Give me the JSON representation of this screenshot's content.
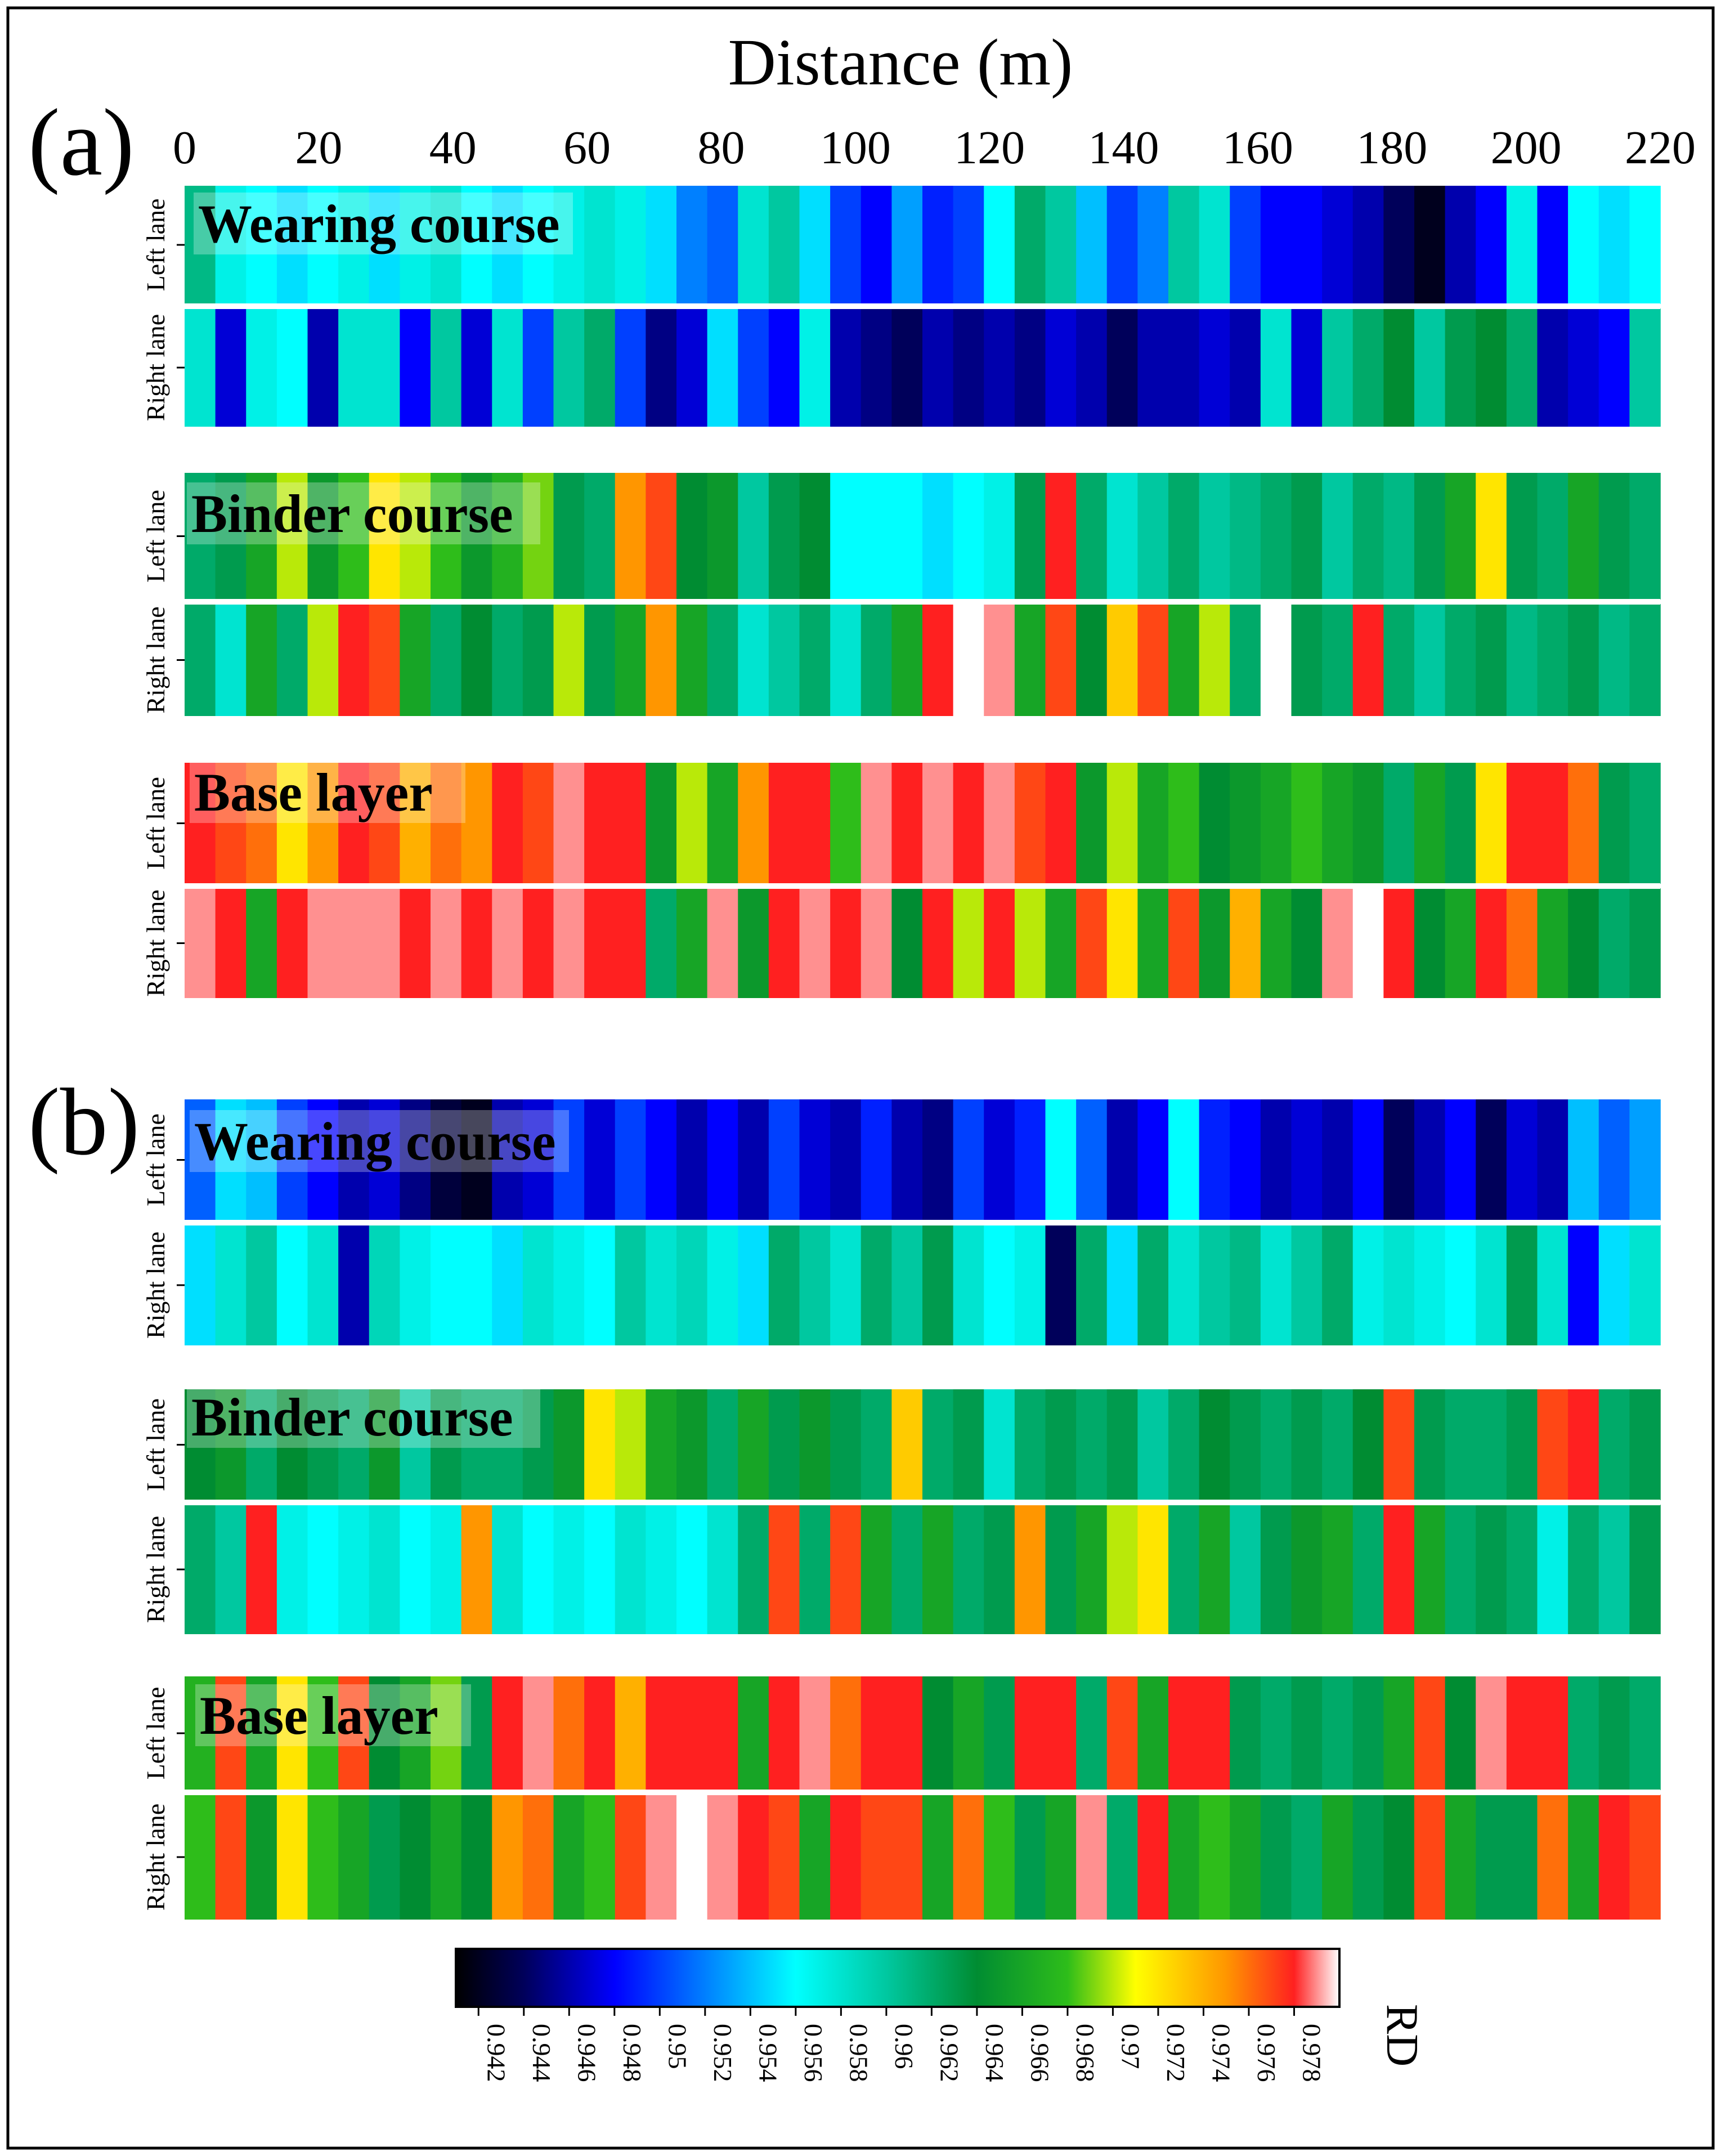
{
  "chart_data": {
    "type": "heatmap",
    "xlabel": "Distance (m)",
    "x_ticks": [
      "0",
      "20",
      "40",
      "60",
      "80",
      "100",
      "120",
      "140",
      "160",
      "180",
      "200",
      "220"
    ],
    "xlim": [
      0,
      220
    ],
    "lane_labels": [
      "Left lane",
      "Right lane"
    ],
    "colorbar": {
      "label": "RD",
      "range": [
        0.941,
        0.98
      ],
      "ticks": [
        "0.942",
        "0.944",
        "0.946",
        "0.948",
        "0.95",
        "0.952",
        "0.954",
        "0.956",
        "0.958",
        "0.96",
        "0.962",
        "0.964",
        "0.966",
        "0.968",
        "0.97",
        "0.972",
        "0.974",
        "0.976",
        "0.978"
      ],
      "stops": [
        {
          "value": 0.941,
          "color": "#000000"
        },
        {
          "value": 0.944,
          "color": "#00005a"
        },
        {
          "value": 0.948,
          "color": "#0000ff"
        },
        {
          "value": 0.956,
          "color": "#00ffff"
        },
        {
          "value": 0.96,
          "color": "#00c8a0"
        },
        {
          "value": 0.964,
          "color": "#008c32"
        },
        {
          "value": 0.968,
          "color": "#2ebd1a"
        },
        {
          "value": 0.971,
          "color": "#ffff00"
        },
        {
          "value": 0.975,
          "color": "#ff9600"
        },
        {
          "value": 0.978,
          "color": "#ff2020"
        },
        {
          "value": 0.98,
          "color": "#ffffff"
        }
      ]
    },
    "panels": [
      {
        "id": "a",
        "label": "(a)",
        "layers": [
          {
            "name": "Wearing course",
            "left_lane": [
              0.961,
              0.957,
              0.956,
              0.955,
              0.956,
              0.957,
              0.955,
              0.957,
              0.958,
              0.956,
              0.955,
              0.956,
              0.957,
              0.958,
              0.957,
              0.955,
              0.952,
              0.951,
              0.958,
              0.96,
              0.955,
              0.95,
              0.948,
              0.953,
              0.949,
              0.95,
              0.956,
              0.962,
              0.96,
              0.954,
              0.95,
              0.952,
              0.96,
              0.958,
              0.95,
              0.948,
              0.948,
              0.947,
              0.946,
              0.944,
              0.942,
              0.946,
              0.948,
              0.957,
              0.948,
              0.956,
              0.955,
              0.956
            ],
            "right_lane": [
              0.958,
              0.947,
              0.957,
              0.956,
              0.946,
              0.958,
              0.958,
              0.948,
              0.96,
              0.947,
              0.958,
              0.95,
              0.96,
              0.962,
              0.95,
              0.945,
              0.947,
              0.955,
              0.95,
              0.948,
              0.957,
              0.946,
              0.945,
              0.944,
              0.946,
              0.945,
              0.946,
              0.945,
              0.947,
              0.946,
              0.944,
              0.946,
              0.946,
              0.947,
              0.946,
              0.958,
              0.947,
              0.96,
              0.962,
              0.964,
              0.96,
              0.963,
              0.964,
              0.962,
              0.946,
              0.947,
              0.948,
              0.96
            ]
          },
          {
            "name": "Binder course",
            "left_lane": [
              0.962,
              0.963,
              0.966,
              0.97,
              0.965,
              0.968,
              0.972,
              0.97,
              0.968,
              0.965,
              0.967,
              0.969,
              0.963,
              0.962,
              0.975,
              0.977,
              0.964,
              0.965,
              0.96,
              0.963,
              0.964,
              0.956,
              0.956,
              0.956,
              0.955,
              0.956,
              0.957,
              0.963,
              0.978,
              0.962,
              0.958,
              0.96,
              0.962,
              0.96,
              0.961,
              0.962,
              0.963,
              0.96,
              0.962,
              0.961,
              0.963,
              0.966,
              0.972,
              0.963,
              0.962,
              0.966,
              0.963,
              0.962
            ],
            "right_lane": [
              0.962,
              0.958,
              0.966,
              0.962,
              0.97,
              0.978,
              0.977,
              0.966,
              0.962,
              0.964,
              0.962,
              0.963,
              0.97,
              0.963,
              0.966,
              0.975,
              0.966,
              0.962,
              0.958,
              0.96,
              0.962,
              0.958,
              0.962,
              0.966,
              0.978,
              0.98,
              0.979,
              0.966,
              0.977,
              0.964,
              0.973,
              0.977,
              0.966,
              0.97,
              0.962,
              0.98,
              0.963,
              0.962,
              0.978,
              0.962,
              0.96,
              0.962,
              0.963,
              0.961,
              0.962,
              0.963,
              0.961,
              0.962
            ]
          },
          {
            "name": "Base layer",
            "left_lane": [
              0.978,
              0.977,
              0.976,
              0.972,
              0.975,
              0.978,
              0.977,
              0.974,
              0.976,
              0.975,
              0.978,
              0.977,
              0.979,
              0.978,
              0.978,
              0.965,
              0.97,
              0.966,
              0.975,
              0.978,
              0.978,
              0.968,
              0.979,
              0.978,
              0.979,
              0.978,
              0.979,
              0.977,
              0.978,
              0.965,
              0.97,
              0.966,
              0.968,
              0.964,
              0.965,
              0.966,
              0.968,
              0.966,
              0.965,
              0.962,
              0.966,
              0.963,
              0.972,
              0.978,
              0.978,
              0.976,
              0.963,
              0.962
            ],
            "right_lane": [
              0.979,
              0.978,
              0.966,
              0.978,
              0.979,
              0.979,
              0.979,
              0.978,
              0.979,
              0.978,
              0.979,
              0.978,
              0.979,
              0.978,
              0.978,
              0.962,
              0.966,
              0.979,
              0.965,
              0.978,
              0.979,
              0.978,
              0.979,
              0.964,
              0.978,
              0.97,
              0.978,
              0.97,
              0.966,
              0.977,
              0.972,
              0.966,
              0.977,
              0.965,
              0.974,
              0.966,
              0.964,
              0.979,
              0.98,
              0.978,
              0.964,
              0.966,
              0.978,
              0.976,
              0.966,
              0.964,
              0.962,
              0.963
            ]
          }
        ]
      },
      {
        "id": "b",
        "label": "(b)",
        "layers": [
          {
            "name": "Wearing course",
            "left_lane": [
              0.951,
              0.955,
              0.954,
              0.95,
              0.948,
              0.946,
              0.947,
              0.945,
              0.943,
              0.942,
              0.946,
              0.947,
              0.95,
              0.947,
              0.95,
              0.948,
              0.946,
              0.948,
              0.946,
              0.95,
              0.947,
              0.946,
              0.949,
              0.946,
              0.945,
              0.95,
              0.947,
              0.949,
              0.956,
              0.951,
              0.946,
              0.948,
              0.956,
              0.949,
              0.948,
              0.946,
              0.947,
              0.946,
              0.948,
              0.944,
              0.946,
              0.948,
              0.944,
              0.947,
              0.946,
              0.954,
              0.951,
              0.953
            ],
            "right_lane": [
              0.955,
              0.958,
              0.96,
              0.956,
              0.958,
              0.946,
              0.959,
              0.957,
              0.956,
              0.956,
              0.955,
              0.958,
              0.957,
              0.956,
              0.96,
              0.958,
              0.959,
              0.957,
              0.955,
              0.962,
              0.96,
              0.958,
              0.962,
              0.96,
              0.963,
              0.958,
              0.956,
              0.957,
              0.944,
              0.962,
              0.955,
              0.962,
              0.958,
              0.96,
              0.961,
              0.958,
              0.96,
              0.962,
              0.957,
              0.958,
              0.957,
              0.956,
              0.958,
              0.963,
              0.958,
              0.948,
              0.955,
              0.958
            ]
          },
          {
            "name": "Binder course",
            "left_lane": [
              0.964,
              0.965,
              0.962,
              0.964,
              0.963,
              0.962,
              0.965,
              0.96,
              0.963,
              0.962,
              0.962,
              0.963,
              0.965,
              0.972,
              0.97,
              0.966,
              0.965,
              0.962,
              0.966,
              0.963,
              0.965,
              0.963,
              0.962,
              0.973,
              0.962,
              0.963,
              0.958,
              0.962,
              0.963,
              0.962,
              0.963,
              0.96,
              0.962,
              0.964,
              0.963,
              0.962,
              0.963,
              0.962,
              0.964,
              0.977,
              0.963,
              0.962,
              0.962,
              0.963,
              0.977,
              0.978,
              0.962,
              0.963
            ],
            "right_lane": [
              0.962,
              0.96,
              0.978,
              0.957,
              0.956,
              0.957,
              0.958,
              0.956,
              0.957,
              0.975,
              0.958,
              0.956,
              0.957,
              0.956,
              0.958,
              0.957,
              0.956,
              0.958,
              0.962,
              0.977,
              0.962,
              0.977,
              0.966,
              0.962,
              0.966,
              0.962,
              0.963,
              0.975,
              0.963,
              0.966,
              0.97,
              0.972,
              0.962,
              0.966,
              0.96,
              0.963,
              0.965,
              0.966,
              0.962,
              0.978,
              0.966,
              0.962,
              0.963,
              0.962,
              0.957,
              0.962,
              0.96,
              0.963
            ]
          },
          {
            "name": "Base layer",
            "left_lane": [
              0.967,
              0.977,
              0.966,
              0.972,
              0.968,
              0.977,
              0.964,
              0.966,
              0.969,
              0.963,
              0.978,
              0.979,
              0.976,
              0.978,
              0.974,
              0.978,
              0.978,
              0.978,
              0.966,
              0.978,
              0.979,
              0.976,
              0.978,
              0.978,
              0.964,
              0.966,
              0.963,
              0.978,
              0.978,
              0.962,
              0.977,
              0.966,
              0.978,
              0.978,
              0.963,
              0.962,
              0.963,
              0.962,
              0.963,
              0.966,
              0.977,
              0.964,
              0.979,
              0.978,
              0.978,
              0.962,
              0.963,
              0.962
            ],
            "right_lane": [
              0.968,
              0.977,
              0.965,
              0.972,
              0.968,
              0.966,
              0.963,
              0.964,
              0.966,
              0.964,
              0.975,
              0.976,
              0.966,
              0.968,
              0.977,
              0.979,
              0.98,
              0.979,
              0.978,
              0.977,
              0.966,
              0.978,
              0.977,
              0.977,
              0.966,
              0.976,
              0.968,
              0.963,
              0.966,
              0.979,
              0.962,
              0.978,
              0.966,
              0.968,
              0.966,
              0.963,
              0.962,
              0.966,
              0.963,
              0.964,
              0.977,
              0.966,
              0.963,
              0.963,
              0.976,
              0.966,
              0.978,
              0.977
            ]
          }
        ]
      }
    ]
  }
}
